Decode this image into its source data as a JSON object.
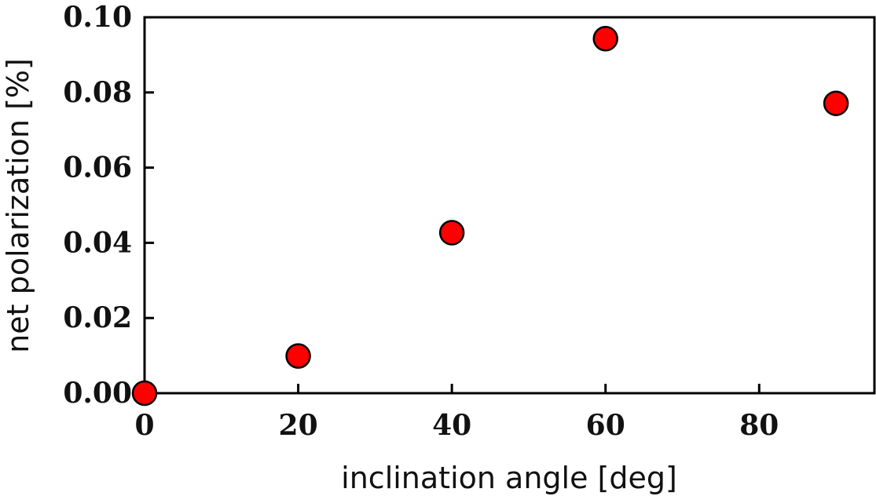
{
  "chart_data": {
    "type": "scatter",
    "xlabel": "inclination angle [deg]",
    "ylabel": "net polarization [%]",
    "xlim": [
      0,
      95
    ],
    "ylim": [
      0,
      0.1
    ],
    "x_ticks": [
      0,
      20,
      40,
      60,
      80
    ],
    "x_tick_labels": [
      "0",
      "20",
      "40",
      "60",
      "80"
    ],
    "y_ticks": [
      0,
      0.02,
      0.04,
      0.06,
      0.08,
      0.1
    ],
    "y_tick_labels": [
      "0.00",
      "0.02",
      "0.04",
      "0.06",
      "0.08",
      "0.10"
    ],
    "grid": false,
    "series": [
      {
        "color": "#ff0000",
        "marker": "circle",
        "x": [
          0,
          20,
          40,
          60,
          90
        ],
        "y": [
          0.0,
          0.0099,
          0.0427,
          0.0943,
          0.0771
        ]
      }
    ]
  }
}
